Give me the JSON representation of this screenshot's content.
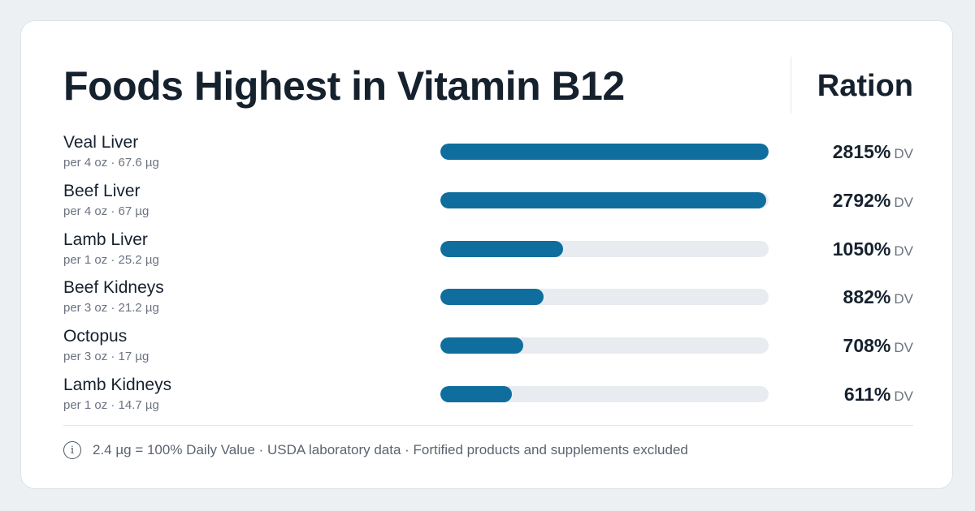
{
  "header": {
    "title": "Foods Highest in Vitamin B12",
    "brand": "Ration"
  },
  "footer": {
    "icon": "info-icon",
    "icon_glyph": "i",
    "note": "2.4 µg = 100% Daily Value · USDA laboratory data · Fortified products and supplements excluded"
  },
  "colors": {
    "bar_fill": "#0f6e9e",
    "bar_track": "#e8ecf0"
  },
  "chart_data": {
    "type": "bar",
    "orientation": "horizontal",
    "title": "Foods Highest in Vitamin B12",
    "xlim": [
      0,
      2815
    ],
    "unit": "% DV",
    "rows": [
      {
        "name": "Veal Liver",
        "serving": "per 4 oz · 67.6 µg",
        "value": 2815,
        "value_label": "2815%",
        "unit_label": "DV"
      },
      {
        "name": "Beef Liver",
        "serving": "per 4 oz · 67 µg",
        "value": 2792,
        "value_label": "2792%",
        "unit_label": "DV"
      },
      {
        "name": "Lamb Liver",
        "serving": "per 1 oz · 25.2 µg",
        "value": 1050,
        "value_label": "1050%",
        "unit_label": "DV"
      },
      {
        "name": "Beef Kidneys",
        "serving": "per 3 oz · 21.2 µg",
        "value": 882,
        "value_label": "882%",
        "unit_label": "DV"
      },
      {
        "name": "Octopus",
        "serving": "per 3 oz · 17 µg",
        "value": 708,
        "value_label": "708%",
        "unit_label": "DV"
      },
      {
        "name": "Lamb Kidneys",
        "serving": "per 1 oz · 14.7 µg",
        "value": 611,
        "value_label": "611%",
        "unit_label": "DV"
      }
    ]
  }
}
